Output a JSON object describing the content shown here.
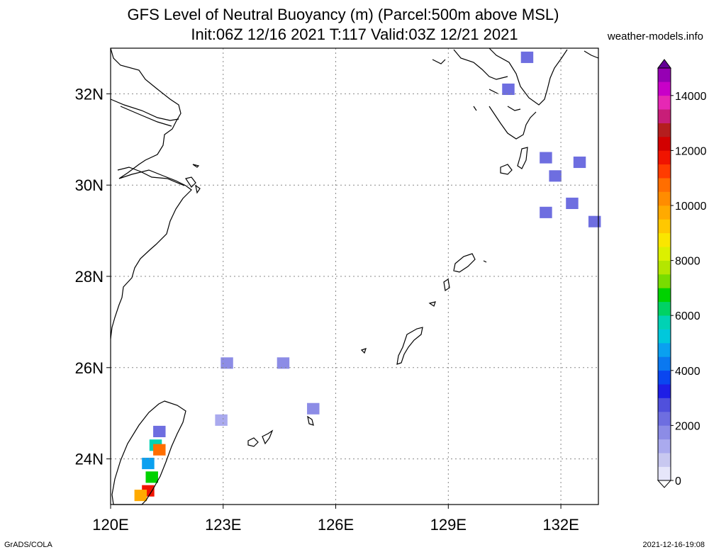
{
  "header": {
    "title_line1": "GFS Level of Neutral Buoyancy (m) (Parcel:500m above MSL)",
    "title_line2": "Init:06Z 12/16 2021 T:117 Valid:03Z 12/21 2021",
    "site": "weather-models.info"
  },
  "footer": {
    "left": "GrADS/COLA",
    "right": "2021-12-16-19:08"
  },
  "map": {
    "lon_range": [
      120,
      133
    ],
    "lat_range": [
      23,
      33
    ],
    "lon_ticks": [
      {
        "value": 120,
        "label": "120E"
      },
      {
        "value": 123,
        "label": "123E"
      },
      {
        "value": 126,
        "label": "126E"
      },
      {
        "value": 129,
        "label": "129E"
      },
      {
        "value": 132,
        "label": "132E"
      }
    ],
    "lat_ticks": [
      {
        "value": 24,
        "label": "24N"
      },
      {
        "value": 26,
        "label": "26N"
      },
      {
        "value": 28,
        "label": "28N"
      },
      {
        "value": 30,
        "label": "30N"
      },
      {
        "value": 32,
        "label": "32N"
      }
    ],
    "grid": true,
    "gridline_style": "dotted",
    "cells": [
      {
        "lon": 131.1,
        "lat": 32.8,
        "value": 2200
      },
      {
        "lon": 130.6,
        "lat": 32.1,
        "value": 2200
      },
      {
        "lon": 131.6,
        "lat": 30.6,
        "value": 2200
      },
      {
        "lon": 131.85,
        "lat": 30.2,
        "value": 2200
      },
      {
        "lon": 132.5,
        "lat": 30.5,
        "value": 2200
      },
      {
        "lon": 132.3,
        "lat": 29.6,
        "value": 2200
      },
      {
        "lon": 132.9,
        "lat": 29.2,
        "value": 2200
      },
      {
        "lon": 131.6,
        "lat": 29.4,
        "value": 2200
      },
      {
        "lon": 123.1,
        "lat": 26.1,
        "value": 1500
      },
      {
        "lon": 124.6,
        "lat": 26.1,
        "value": 1500
      },
      {
        "lon": 122.95,
        "lat": 24.85,
        "value": 1400
      },
      {
        "lon": 125.4,
        "lat": 25.1,
        "value": 1500
      },
      {
        "lon": 121.3,
        "lat": 24.6,
        "value": 2200
      },
      {
        "lon": 121.2,
        "lat": 24.3,
        "value": 5500
      },
      {
        "lon": 121.3,
        "lat": 24.2,
        "value": 10500
      },
      {
        "lon": 121.0,
        "lat": 23.9,
        "value": 4500
      },
      {
        "lon": 121.1,
        "lat": 23.6,
        "value": 6500
      },
      {
        "lon": 121.0,
        "lat": 23.3,
        "value": 11500
      },
      {
        "lon": 120.8,
        "lat": 23.2,
        "value": 9500
      }
    ],
    "colors": {
      "coastline": "#000000",
      "grid": "#888888"
    }
  },
  "colorbar": {
    "min": 0,
    "max": 15000,
    "step": 500,
    "labels": [
      {
        "value": 0,
        "label": "0"
      },
      {
        "value": 2000,
        "label": "2000"
      },
      {
        "value": 4000,
        "label": "4000"
      },
      {
        "value": 6000,
        "label": "6000"
      },
      {
        "value": 8000,
        "label": "8000"
      },
      {
        "value": 10000,
        "label": "10000"
      },
      {
        "value": 12000,
        "label": "12000"
      },
      {
        "value": 14000,
        "label": "14000"
      }
    ],
    "colors": [
      "#e6e6fa",
      "#c8c8f0",
      "#aaaaee",
      "#8c8ce6",
      "#6e6ee0",
      "#5050dc",
      "#1e1ee6",
      "#0a46f0",
      "#0a78f0",
      "#0aa0f0",
      "#00c8dc",
      "#00d2b4",
      "#00d264",
      "#00d200",
      "#78dc00",
      "#b4e600",
      "#dcf000",
      "#fae600",
      "#ffc800",
      "#ffaa00",
      "#ff8c00",
      "#ff6e00",
      "#ff3c00",
      "#f01400",
      "#d20000",
      "#b41e1e",
      "#c81e78",
      "#e628b4",
      "#c800c8",
      "#9600b4"
    ]
  }
}
